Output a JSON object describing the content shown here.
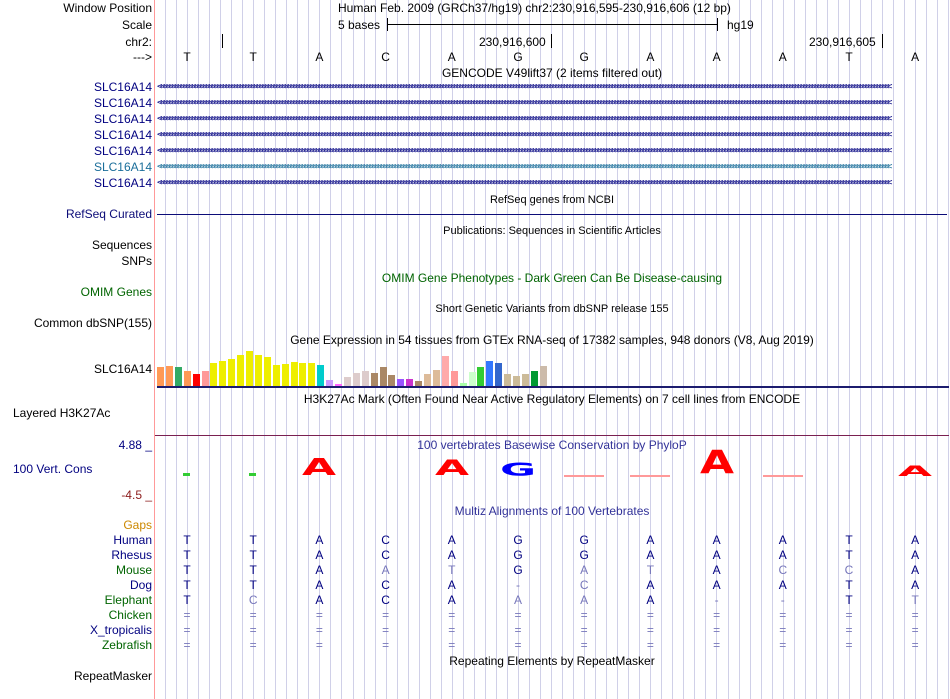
{
  "header": {
    "window_position_label": "Window Position",
    "title": "Human Feb. 2009 (GRCh37/hg19)   chr2:230,916,595-230,916,606 (12 bp)",
    "scale_label": "Scale",
    "scale_text": "5 bases",
    "assembly": "hg19",
    "chrom_label": "chr2:",
    "pos1": "230,916,600",
    "pos2": "230,916,605",
    "strand_label": "--->"
  },
  "sequence": [
    "T",
    "T",
    "A",
    "C",
    "A",
    "G",
    "G",
    "A",
    "A",
    "A",
    "T",
    "A"
  ],
  "gencode": {
    "title": "GENCODE V49lift37 (2 items filtered out)",
    "items": [
      {
        "label": "SLC16A14",
        "color": "#000080"
      },
      {
        "label": "SLC16A14",
        "color": "#000080"
      },
      {
        "label": "SLC16A14",
        "color": "#000080"
      },
      {
        "label": "SLC16A14",
        "color": "#000080"
      },
      {
        "label": "SLC16A14",
        "color": "#000080"
      },
      {
        "label": "SLC16A14",
        "color": "#1a6e9a"
      },
      {
        "label": "SLC16A14",
        "color": "#000080"
      }
    ]
  },
  "refseq": {
    "title": "RefSeq genes from NCBI",
    "label": "RefSeq Curated",
    "color": "#0c0c78"
  },
  "publications": {
    "title": "Publications: Sequences in Scientific Articles",
    "labels": [
      "Sequences",
      "SNPs"
    ]
  },
  "omim": {
    "title": "OMIM Gene Phenotypes - Dark Green Can Be Disease-causing",
    "label": "OMIM Genes",
    "color": "#006400"
  },
  "dbsnp": {
    "title": "Short Genetic Variants from dbSNP release 155",
    "label": "Common dbSNP(155)"
  },
  "gtex": {
    "title": "Gene Expression in 54 tissues from GTEx RNA-seq of 17382 samples, 948 donors (V8, Aug 2019)",
    "label": "SLC16A14",
    "bars": [
      {
        "h": 20,
        "c": "#ff9955"
      },
      {
        "h": 21,
        "c": "#ff9955"
      },
      {
        "h": 20,
        "c": "#33aa66"
      },
      {
        "h": 16,
        "c": "#ff9955"
      },
      {
        "h": 13,
        "c": "#ff0000"
      },
      {
        "h": 16,
        "c": "#ff9999"
      },
      {
        "h": 24,
        "c": "#eeee00"
      },
      {
        "h": 26,
        "c": "#eeee00"
      },
      {
        "h": 28,
        "c": "#eeee00"
      },
      {
        "h": 32,
        "c": "#eeee00"
      },
      {
        "h": 36,
        "c": "#eeee00"
      },
      {
        "h": 32,
        "c": "#eeee00"
      },
      {
        "h": 30,
        "c": "#eeee00"
      },
      {
        "h": 22,
        "c": "#eeee00"
      },
      {
        "h": 23,
        "c": "#eeee00"
      },
      {
        "h": 25,
        "c": "#eeee00"
      },
      {
        "h": 24,
        "c": "#eeee00"
      },
      {
        "h": 24,
        "c": "#eeee00"
      },
      {
        "h": 22,
        "c": "#00cccc"
      },
      {
        "h": 7,
        "c": "#cc99ff"
      },
      {
        "h": 3,
        "c": "#ff66ff"
      },
      {
        "h": 10,
        "c": "#ddcccc"
      },
      {
        "h": 14,
        "c": "#ddcccc"
      },
      {
        "h": 16,
        "c": "#ddcccc"
      },
      {
        "h": 14,
        "c": "#aa8866"
      },
      {
        "h": 20,
        "c": "#aa8866"
      },
      {
        "h": 12,
        "c": "#aa8866"
      },
      {
        "h": 8,
        "c": "#9955ff"
      },
      {
        "h": 8,
        "c": "#cc33cc"
      },
      {
        "h": 6,
        "c": "#aa8866"
      },
      {
        "h": 13,
        "c": "#ddbb99"
      },
      {
        "h": 17,
        "c": "#ddbb99"
      },
      {
        "h": 31,
        "c": "#ffaaaa"
      },
      {
        "h": 16,
        "c": "#ff9999"
      },
      {
        "h": 4,
        "c": "#aaffaa"
      },
      {
        "h": 15,
        "c": "#ccffcc"
      },
      {
        "h": 20,
        "c": "#33cc33"
      },
      {
        "h": 26,
        "c": "#3377ff"
      },
      {
        "h": 24,
        "c": "#3366cc"
      },
      {
        "h": 13,
        "c": "#ccbb99"
      },
      {
        "h": 11,
        "c": "#ccbb99"
      },
      {
        "h": 13,
        "c": "#ccbb99"
      },
      {
        "h": 16,
        "c": "#009933"
      },
      {
        "h": 21,
        "c": "#ccbbaa"
      }
    ]
  },
  "h3k27ac": {
    "title": "H3K27Ac Mark (Often Found Near Active Regulatory Elements) on 7 cell lines from ENCODE",
    "label": "Layered H3K27Ac",
    "color": "#7a2050"
  },
  "phylop": {
    "title": "100 vertebrates Basewise Conservation by PhyloP",
    "label": "100 Vert. Cons",
    "max": "4.88 _",
    "min": "-4.5 _",
    "colors": {
      "title": "#333399",
      "pos": "#000080",
      "neg": "#8b1a1a"
    },
    "scores": [
      0.35,
      0.3,
      0.9,
      0,
      0.85,
      0.7,
      -0.2,
      -0.35,
      1.25,
      -0.2,
      0,
      0.55
    ],
    "glyphs": [
      {
        "kind": "bar",
        "color": "#33cc33"
      },
      {
        "kind": "bar",
        "color": "#33cc33"
      },
      {
        "kind": "logo",
        "letter": "A",
        "color": "#ff0000"
      },
      {
        "kind": "none",
        "letter": "",
        "color": "#000000"
      },
      {
        "kind": "logo",
        "letter": "A",
        "color": "#ff0000"
      },
      {
        "kind": "logo",
        "letter": "G",
        "color": "#0000ff"
      },
      {
        "kind": "dash",
        "letter": "",
        "color": "#ff9999"
      },
      {
        "kind": "dash",
        "letter": "",
        "color": "#ff9999"
      },
      {
        "kind": "logo",
        "letter": "A",
        "color": "#ff0000"
      },
      {
        "kind": "dash",
        "letter": "",
        "color": "#ff9999"
      },
      {
        "kind": "none",
        "letter": "",
        "color": "#000000"
      },
      {
        "kind": "logo",
        "letter": "A",
        "color": "#ff0000"
      }
    ]
  },
  "multiz": {
    "title": "Multiz Alignments of 100 Vertebrates",
    "gaps_label": "Gaps",
    "gaps_color": "#cc8800",
    "species": [
      {
        "name": "Human",
        "color": "#000080",
        "bases": [
          "T",
          "T",
          "A",
          "C",
          "A",
          "G",
          "G",
          "A",
          "A",
          "A",
          "T",
          "A"
        ],
        "colors": [
          "d",
          "d",
          "d",
          "d",
          "d",
          "d",
          "d",
          "d",
          "d",
          "d",
          "d",
          "d"
        ]
      },
      {
        "name": "Rhesus",
        "color": "#000080",
        "bases": [
          "T",
          "T",
          "A",
          "C",
          "A",
          "G",
          "G",
          "A",
          "A",
          "A",
          "T",
          "A"
        ],
        "colors": [
          "d",
          "d",
          "d",
          "d",
          "d",
          "d",
          "d",
          "d",
          "d",
          "d",
          "d",
          "d"
        ]
      },
      {
        "name": "Mouse",
        "color": "#006400",
        "bases": [
          "T",
          "T",
          "A",
          "A",
          "T",
          "G",
          "A",
          "T",
          "A",
          "C",
          "C",
          "A"
        ],
        "colors": [
          "d",
          "d",
          "d",
          "l",
          "l",
          "d",
          "l",
          "l",
          "d",
          "l",
          "l",
          "d"
        ]
      },
      {
        "name": "Dog",
        "color": "#000080",
        "bases": [
          "T",
          "T",
          "A",
          "C",
          "A",
          "-",
          "C",
          "A",
          "A",
          "A",
          "T",
          "A"
        ],
        "colors": [
          "d",
          "d",
          "d",
          "d",
          "d",
          "l",
          "l",
          "d",
          "d",
          "d",
          "d",
          "d"
        ]
      },
      {
        "name": "Elephant",
        "color": "#006400",
        "bases": [
          "T",
          "C",
          "A",
          "C",
          "A",
          "A",
          "A",
          "A",
          "-",
          "-",
          "T",
          "T"
        ],
        "colors": [
          "d",
          "l",
          "d",
          "d",
          "d",
          "l",
          "l",
          "d",
          "l",
          "l",
          "d",
          "l"
        ]
      },
      {
        "name": "Chicken",
        "color": "#006400",
        "bases": [
          "=",
          "=",
          "=",
          "=",
          "=",
          "=",
          "=",
          "=",
          "=",
          "=",
          "=",
          "="
        ],
        "colors": [
          "l",
          "l",
          "l",
          "l",
          "l",
          "l",
          "l",
          "l",
          "l",
          "l",
          "l",
          "l"
        ]
      },
      {
        "name": "X_tropicalis",
        "color": "#000080",
        "bases": [
          "=",
          "=",
          "=",
          "=",
          "=",
          "=",
          "=",
          "=",
          "=",
          "=",
          "=",
          "="
        ],
        "colors": [
          "l",
          "l",
          "l",
          "l",
          "l",
          "l",
          "l",
          "l",
          "l",
          "l",
          "l",
          "l"
        ]
      },
      {
        "name": "Zebrafish",
        "color": "#006400",
        "bases": [
          "=",
          "=",
          "=",
          "=",
          "=",
          "=",
          "=",
          "=",
          "=",
          "=",
          "=",
          "="
        ],
        "colors": [
          "l",
          "l",
          "l",
          "l",
          "l",
          "l",
          "l",
          "l",
          "l",
          "l",
          "l",
          "l"
        ]
      }
    ],
    "dark_color": "#000080",
    "light_color": "#7777bb"
  },
  "repeatmasker": {
    "title": "Repeating Elements by RepeatMasker",
    "label": "RepeatMasker"
  },
  "colors": {
    "grid": "#d0d0e8",
    "separator": "#ff9999"
  }
}
